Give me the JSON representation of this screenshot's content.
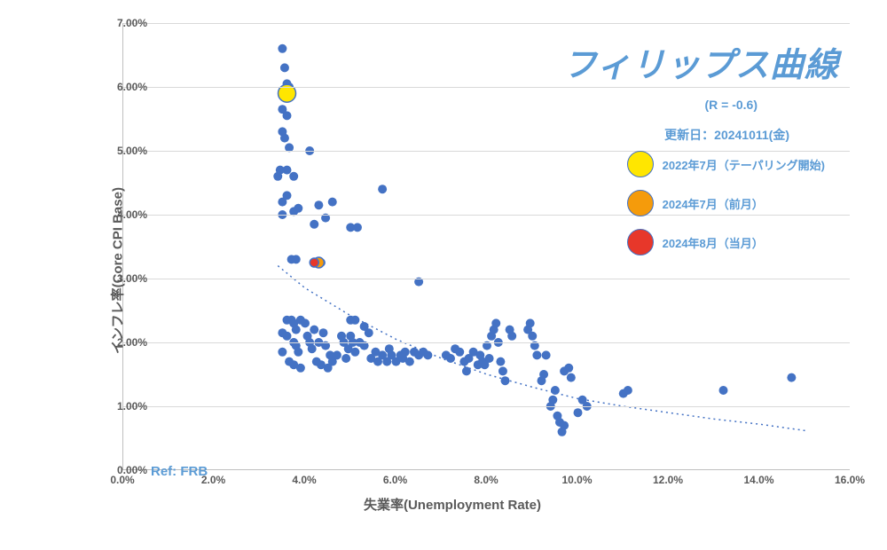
{
  "phillips_chart": {
    "type": "scatter",
    "title": "フィリップス曲線",
    "r_stat": "(R = -0.6)",
    "update_date": "更新日：20241011(金)",
    "xlabel": "失業率(Unemployment Rate)",
    "ylabel": "インフレ率(Core CPI Base)",
    "ref": "Ref: FRB",
    "xlim": [
      0,
      16
    ],
    "ylim": [
      0,
      7
    ],
    "xtick_step": 2,
    "ytick_step": 1,
    "x_format": "pct1",
    "y_format": "pct2",
    "background_color": "#ffffff",
    "grid_color": "#d9d9d9",
    "axis_color": "#bfbfbf",
    "tick_font_color": "#595959",
    "tick_fontsize": 12,
    "label_fontsize": 15,
    "title_fontsize": 38,
    "title_color": "#5b9bd5",
    "annotation_color": "#5b9bd5",
    "marker_color": "#4472c4",
    "marker_radius": 5,
    "trend_color": "#4472c4",
    "trend_dash": "2 4",
    "trend_curve": [
      [
        3.4,
        3.2
      ],
      [
        4.0,
        2.85
      ],
      [
        5.0,
        2.42
      ],
      [
        6.0,
        2.05
      ],
      [
        7.0,
        1.75
      ],
      [
        8.0,
        1.5
      ],
      [
        9.0,
        1.3
      ],
      [
        10.0,
        1.12
      ],
      [
        11.0,
        1.0
      ],
      [
        12.0,
        0.9
      ],
      [
        13.0,
        0.8
      ],
      [
        14.0,
        0.72
      ],
      [
        15.0,
        0.62
      ]
    ],
    "points": [
      [
        3.5,
        6.6
      ],
      [
        3.55,
        6.3
      ],
      [
        3.6,
        6.05
      ],
      [
        3.65,
        6.0
      ],
      [
        3.55,
        5.9
      ],
      [
        3.5,
        5.65
      ],
      [
        3.6,
        5.55
      ],
      [
        3.5,
        5.3
      ],
      [
        3.55,
        5.2
      ],
      [
        3.65,
        5.05
      ],
      [
        3.45,
        4.7
      ],
      [
        3.4,
        4.6
      ],
      [
        3.6,
        4.7
      ],
      [
        3.75,
        4.6
      ],
      [
        4.1,
        5.0
      ],
      [
        3.5,
        4.2
      ],
      [
        3.5,
        4.0
      ],
      [
        3.6,
        4.3
      ],
      [
        3.85,
        4.1
      ],
      [
        3.75,
        4.05
      ],
      [
        4.3,
        4.15
      ],
      [
        4.6,
        4.2
      ],
      [
        4.45,
        3.95
      ],
      [
        4.2,
        3.85
      ],
      [
        5.0,
        3.8
      ],
      [
        5.15,
        3.8
      ],
      [
        5.7,
        4.4
      ],
      [
        3.7,
        3.3
      ],
      [
        3.8,
        3.3
      ],
      [
        4.25,
        3.25
      ],
      [
        4.35,
        3.25
      ],
      [
        3.6,
        2.35
      ],
      [
        3.7,
        2.35
      ],
      [
        3.75,
        2.3
      ],
      [
        3.8,
        2.2
      ],
      [
        3.9,
        2.35
      ],
      [
        3.5,
        2.15
      ],
      [
        3.6,
        2.1
      ],
      [
        3.75,
        2.0
      ],
      [
        3.8,
        1.95
      ],
      [
        3.85,
        1.85
      ],
      [
        3.5,
        1.85
      ],
      [
        3.65,
        1.7
      ],
      [
        3.75,
        1.65
      ],
      [
        3.9,
        1.6
      ],
      [
        4.0,
        2.3
      ],
      [
        4.05,
        2.1
      ],
      [
        4.1,
        2.0
      ],
      [
        4.15,
        1.9
      ],
      [
        4.2,
        2.2
      ],
      [
        4.3,
        2.0
      ],
      [
        4.4,
        2.15
      ],
      [
        4.45,
        1.95
      ],
      [
        4.55,
        1.8
      ],
      [
        4.25,
        1.7
      ],
      [
        4.35,
        1.65
      ],
      [
        4.5,
        1.6
      ],
      [
        4.6,
        1.7
      ],
      [
        4.7,
        1.8
      ],
      [
        4.8,
        2.1
      ],
      [
        4.85,
        2.0
      ],
      [
        4.9,
        1.75
      ],
      [
        4.95,
        1.9
      ],
      [
        5.0,
        2.1
      ],
      [
        5.05,
        2.0
      ],
      [
        5.1,
        1.85
      ],
      [
        5.2,
        2.0
      ],
      [
        5.3,
        1.95
      ],
      [
        5.4,
        2.15
      ],
      [
        5.45,
        1.75
      ],
      [
        5.55,
        1.85
      ],
      [
        5.6,
        1.7
      ],
      [
        5.7,
        1.8
      ],
      [
        5.8,
        1.7
      ],
      [
        5.85,
        1.9
      ],
      [
        5.9,
        1.8
      ],
      [
        5.0,
        2.35
      ],
      [
        5.1,
        2.35
      ],
      [
        5.3,
        2.25
      ],
      [
        6.0,
        1.7
      ],
      [
        6.1,
        1.8
      ],
      [
        6.15,
        1.75
      ],
      [
        6.2,
        1.85
      ],
      [
        6.3,
        1.7
      ],
      [
        6.4,
        1.85
      ],
      [
        6.5,
        1.8
      ],
      [
        6.6,
        1.85
      ],
      [
        6.7,
        1.8
      ],
      [
        6.5,
        2.95
      ],
      [
        7.1,
        1.8
      ],
      [
        7.2,
        1.75
      ],
      [
        7.3,
        1.9
      ],
      [
        7.4,
        1.85
      ],
      [
        7.5,
        1.7
      ],
      [
        7.55,
        1.55
      ],
      [
        7.6,
        1.75
      ],
      [
        7.7,
        1.85
      ],
      [
        7.8,
        1.65
      ],
      [
        7.85,
        1.8
      ],
      [
        7.9,
        1.7
      ],
      [
        7.95,
        1.65
      ],
      [
        8.0,
        1.95
      ],
      [
        8.05,
        1.75
      ],
      [
        8.1,
        2.1
      ],
      [
        8.15,
        2.2
      ],
      [
        8.2,
        2.3
      ],
      [
        8.25,
        2.0
      ],
      [
        8.3,
        1.7
      ],
      [
        8.35,
        1.55
      ],
      [
        8.4,
        1.4
      ],
      [
        8.5,
        2.2
      ],
      [
        8.55,
        2.1
      ],
      [
        8.9,
        2.2
      ],
      [
        8.95,
        2.3
      ],
      [
        9.0,
        2.1
      ],
      [
        9.05,
        1.95
      ],
      [
        9.1,
        1.8
      ],
      [
        9.2,
        1.4
      ],
      [
        9.25,
        1.5
      ],
      [
        9.3,
        1.8
      ],
      [
        9.4,
        1.0
      ],
      [
        9.45,
        1.1
      ],
      [
        9.5,
        1.25
      ],
      [
        9.55,
        0.85
      ],
      [
        9.6,
        0.75
      ],
      [
        9.65,
        0.6
      ],
      [
        9.7,
        0.7
      ],
      [
        9.8,
        1.6
      ],
      [
        9.85,
        1.45
      ],
      [
        9.7,
        1.55
      ],
      [
        10.0,
        0.9
      ],
      [
        10.1,
        1.1
      ],
      [
        10.2,
        1.0
      ],
      [
        11.0,
        1.2
      ],
      [
        11.1,
        1.25
      ],
      [
        13.2,
        1.25
      ],
      [
        14.7,
        1.45
      ]
    ],
    "special_points": [
      {
        "x": 3.6,
        "y": 5.9,
        "color": "#ffe600",
        "radius": 10,
        "label": "2022年7月（テーパリング開始)"
      },
      {
        "x": 4.3,
        "y": 3.25,
        "color": "#f59b0b",
        "radius": 6,
        "label": "2024年7月（前月）"
      },
      {
        "x": 4.2,
        "y": 3.25,
        "color": "#e7372a",
        "radius": 5,
        "label": "2024年8月（当月）"
      }
    ],
    "legend_swatch_radius": 15
  }
}
